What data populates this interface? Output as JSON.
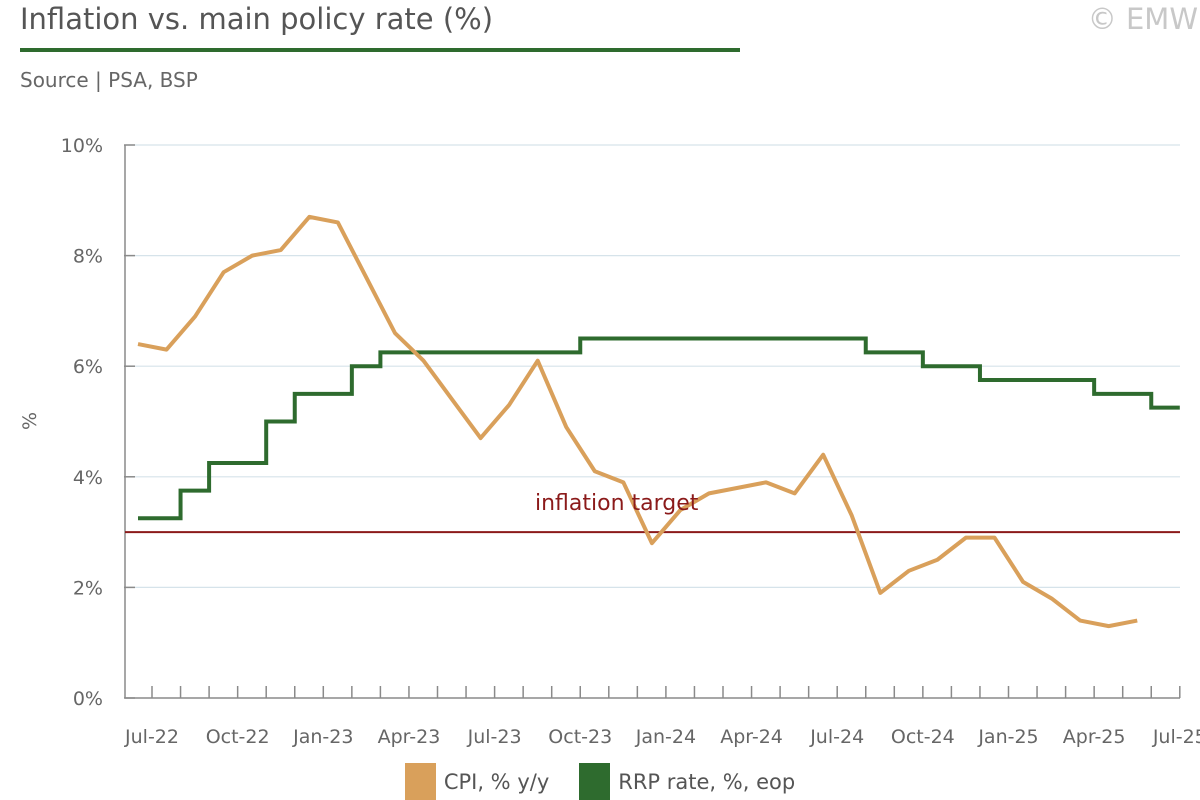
{
  "header": {
    "title": "Inflation vs. main policy rate (%)",
    "source": "Source | PSA, BSP",
    "copyright": "© EMW"
  },
  "colors": {
    "cpi": "#d9a05b",
    "rrp": "#2e6b2e",
    "target": "#8b1a1a",
    "axis": "#8a8a8a",
    "grid": "#d6e3ea",
    "title_rule": "#2e6b2e"
  },
  "legend": {
    "cpi": "CPI, % y/y",
    "rrp": "RRP rate, %, eop"
  },
  "chart_data": {
    "type": "line",
    "ylabel": "%",
    "ylim": [
      0,
      10
    ],
    "yticks": [
      0,
      2,
      4,
      6,
      8,
      10
    ],
    "ytick_labels": [
      "0%",
      "2%",
      "4%",
      "6%",
      "8%",
      "10%"
    ],
    "grid": true,
    "legend_position": "bottom",
    "x": [
      "Jul-22",
      "Aug-22",
      "Sep-22",
      "Oct-22",
      "Nov-22",
      "Dec-22",
      "Jan-23",
      "Feb-23",
      "Mar-23",
      "Apr-23",
      "May-23",
      "Jun-23",
      "Jul-23",
      "Aug-23",
      "Sep-23",
      "Oct-23",
      "Nov-23",
      "Dec-23",
      "Jan-24",
      "Feb-24",
      "Mar-24",
      "Apr-24",
      "May-24",
      "Jun-24",
      "Jul-24",
      "Aug-24",
      "Sep-24",
      "Oct-24",
      "Nov-24",
      "Dec-24",
      "Jan-25",
      "Feb-25",
      "Mar-25",
      "Apr-25",
      "May-25",
      "Jun-25",
      "Jul-25"
    ],
    "xtick_labels": [
      {
        "index": 0,
        "label": "Jul-22"
      },
      {
        "index": 3,
        "label": "Oct-22"
      },
      {
        "index": 6,
        "label": "Jan-23"
      },
      {
        "index": 9,
        "label": "Apr-23"
      },
      {
        "index": 12,
        "label": "Jul-23"
      },
      {
        "index": 15,
        "label": "Oct-23"
      },
      {
        "index": 18,
        "label": "Jan-24"
      },
      {
        "index": 21,
        "label": "Apr-24"
      },
      {
        "index": 24,
        "label": "Jul-24"
      },
      {
        "index": 27,
        "label": "Oct-24"
      },
      {
        "index": 30,
        "label": "Jan-25"
      },
      {
        "index": 33,
        "label": "Apr-25"
      },
      {
        "index": 36,
        "label": "Jul-25"
      }
    ],
    "series": [
      {
        "name": "CPI, % y/y",
        "style": "line",
        "values": [
          6.4,
          6.3,
          6.9,
          7.7,
          8.0,
          8.1,
          8.7,
          8.6,
          7.6,
          6.6,
          6.1,
          5.4,
          4.7,
          5.3,
          6.1,
          4.9,
          4.1,
          3.9,
          2.8,
          3.4,
          3.7,
          3.8,
          3.9,
          3.7,
          4.4,
          3.3,
          1.9,
          2.3,
          2.5,
          2.9,
          2.9,
          2.1,
          1.8,
          1.4,
          1.3,
          1.4,
          null
        ]
      },
      {
        "name": "RRP rate, %, eop",
        "style": "step",
        "values": [
          3.25,
          3.75,
          4.25,
          4.25,
          5.0,
          5.5,
          5.5,
          6.0,
          6.25,
          6.25,
          6.25,
          6.25,
          6.25,
          6.25,
          6.25,
          6.5,
          6.5,
          6.5,
          6.5,
          6.5,
          6.5,
          6.5,
          6.5,
          6.5,
          6.5,
          6.25,
          6.25,
          6.0,
          6.0,
          5.75,
          5.75,
          5.75,
          5.75,
          5.5,
          5.5,
          5.25,
          5.25
        ]
      }
    ],
    "annotations": [
      {
        "type": "hline",
        "y": 3.0,
        "label": "inflation target"
      }
    ]
  }
}
